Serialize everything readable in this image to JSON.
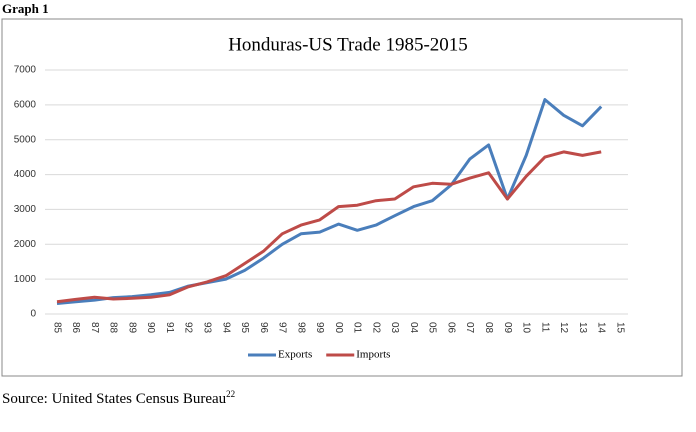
{
  "header": {
    "label": "Graph 1"
  },
  "chart_data": {
    "type": "line",
    "title": "Honduras-US Trade 1985-2015",
    "categories": [
      "85",
      "86",
      "87",
      "88",
      "89",
      "90",
      "91",
      "92",
      "93",
      "94",
      "95",
      "96",
      "97",
      "98",
      "99",
      "00",
      "01",
      "02",
      "03",
      "04",
      "05",
      "06",
      "07",
      "08",
      "09",
      "10",
      "11",
      "12",
      "13",
      "14",
      "15"
    ],
    "series": [
      {
        "name": "Exports",
        "color": "#4a7ebb",
        "values": [
          300,
          350,
          400,
          470,
          500,
          550,
          620,
          800,
          900,
          1000,
          1250,
          1600,
          2000,
          2300,
          2350,
          2580,
          2400,
          2550,
          2820,
          3080,
          3250,
          3700,
          4450,
          4850,
          3300,
          4550,
          6150,
          5700,
          5400,
          5950,
          null
        ]
      },
      {
        "name": "Imports",
        "color": "#be4b48",
        "values": [
          350,
          420,
          480,
          430,
          450,
          480,
          550,
          780,
          920,
          1100,
          1450,
          1800,
          2300,
          2550,
          2700,
          3080,
          3120,
          3250,
          3300,
          3650,
          3750,
          3720,
          3900,
          4050,
          3300,
          3950,
          4500,
          4650,
          4550,
          4650,
          null
        ]
      }
    ],
    "ylim": [
      0,
      7000
    ],
    "yticks": [
      0,
      1000,
      2000,
      3000,
      4000,
      5000,
      6000,
      7000
    ],
    "grid": true,
    "legend": "bottom"
  },
  "footer": {
    "source": "Source: United States Census Bureau",
    "footnote": "22"
  }
}
